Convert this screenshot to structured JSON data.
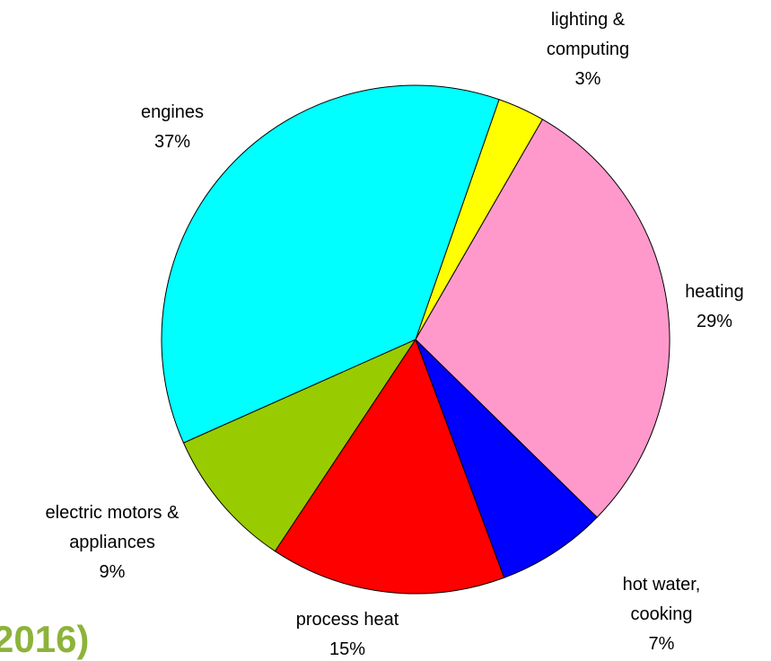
{
  "chart_data": {
    "type": "pie",
    "categories": [
      "lighting &\ncomputing",
      "heating",
      "hot water, cooking",
      "process heat",
      "electric motors &\nappliances",
      "engines"
    ],
    "values": [
      3,
      29,
      7,
      15,
      9,
      37
    ],
    "value_labels": [
      "3%",
      "29%",
      "7%",
      "15%",
      "9%",
      "37%"
    ],
    "colors": [
      "#ffff00",
      "#ff99cc",
      "#0000ff",
      "#ff0000",
      "#99cc00",
      "#00ffff"
    ]
  },
  "caption": "2016)"
}
